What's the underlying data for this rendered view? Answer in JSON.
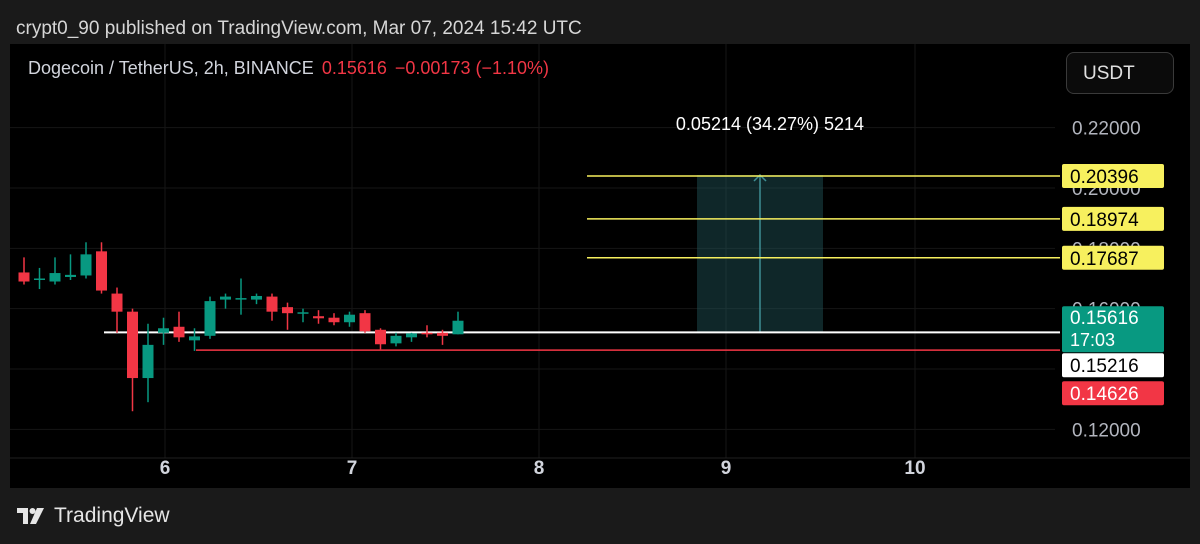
{
  "header": {
    "published": "crypt0_90 published on TradingView.com, Mar 07, 2024 15:42 UTC"
  },
  "legend": {
    "symbol": "Dogecoin / TetherUS, 2h, BINANCE",
    "price": "0.15616",
    "change": "−0.00173 (−1.10%)"
  },
  "currency_button": "USDT",
  "footer": {
    "brand": "TradingView"
  },
  "colors": {
    "up": "#089981",
    "down": "#f23645",
    "level": "#f7f05e",
    "measure": "#2e6f73",
    "white_line": "#ffffff",
    "red_line": "#f23645"
  },
  "chart_data": {
    "type": "candlestick",
    "symbol": "DOGEUSDT",
    "interval": "2h",
    "y_axis": {
      "ticks": [
        "0.22000",
        "0.20000",
        "0.18000",
        "0.16000",
        "0.12000"
      ],
      "tick_values": [
        0.22,
        0.2,
        0.18,
        0.16,
        0.12
      ],
      "range": [
        0.1105,
        0.2285
      ]
    },
    "x_axis": {
      "ticks": [
        "6",
        "7",
        "8",
        "9",
        "10"
      ]
    },
    "candles": [
      {
        "o": 0.172,
        "h": 0.177,
        "l": 0.168,
        "c": 0.169
      },
      {
        "o": 0.1697,
        "h": 0.1735,
        "l": 0.1665,
        "c": 0.17
      },
      {
        "o": 0.169,
        "h": 0.177,
        "l": 0.168,
        "c": 0.1718
      },
      {
        "o": 0.1705,
        "h": 0.178,
        "l": 0.1695,
        "c": 0.1712
      },
      {
        "o": 0.171,
        "h": 0.182,
        "l": 0.17,
        "c": 0.178
      },
      {
        "o": 0.179,
        "h": 0.182,
        "l": 0.165,
        "c": 0.166
      },
      {
        "o": 0.165,
        "h": 0.167,
        "l": 0.152,
        "c": 0.159
      },
      {
        "o": 0.159,
        "h": 0.16,
        "l": 0.126,
        "c": 0.137
      },
      {
        "o": 0.137,
        "h": 0.155,
        "l": 0.129,
        "c": 0.148
      },
      {
        "o": 0.152,
        "h": 0.157,
        "l": 0.148,
        "c": 0.1535
      },
      {
        "o": 0.154,
        "h": 0.159,
        "l": 0.149,
        "c": 0.1505
      },
      {
        "o": 0.1495,
        "h": 0.1535,
        "l": 0.146,
        "c": 0.1508
      },
      {
        "o": 0.151,
        "h": 0.164,
        "l": 0.15,
        "c": 0.1625
      },
      {
        "o": 0.163,
        "h": 0.165,
        "l": 0.16,
        "c": 0.164
      },
      {
        "o": 0.163,
        "h": 0.17,
        "l": 0.158,
        "c": 0.1635
      },
      {
        "o": 0.163,
        "h": 0.165,
        "l": 0.1615,
        "c": 0.1642
      },
      {
        "o": 0.164,
        "h": 0.165,
        "l": 0.156,
        "c": 0.159
      },
      {
        "o": 0.1605,
        "h": 0.162,
        "l": 0.153,
        "c": 0.1585
      },
      {
        "o": 0.1585,
        "h": 0.16,
        "l": 0.1555,
        "c": 0.1588
      },
      {
        "o": 0.1575,
        "h": 0.1595,
        "l": 0.155,
        "c": 0.1568
      },
      {
        "o": 0.157,
        "h": 0.1585,
        "l": 0.1545,
        "c": 0.1555
      },
      {
        "o": 0.1555,
        "h": 0.159,
        "l": 0.154,
        "c": 0.158
      },
      {
        "o": 0.1585,
        "h": 0.1595,
        "l": 0.152,
        "c": 0.1525
      },
      {
        "o": 0.153,
        "h": 0.1535,
        "l": 0.1465,
        "c": 0.1482
      },
      {
        "o": 0.1485,
        "h": 0.152,
        "l": 0.1475,
        "c": 0.151
      },
      {
        "o": 0.1505,
        "h": 0.152,
        "l": 0.149,
        "c": 0.1518
      },
      {
        "o": 0.152,
        "h": 0.1545,
        "l": 0.1505,
        "c": 0.1515
      },
      {
        "o": 0.152,
        "h": 0.153,
        "l": 0.148,
        "c": 0.151
      },
      {
        "o": 0.1515,
        "h": 0.159,
        "l": 0.1515,
        "c": 0.156
      }
    ],
    "horizontal_lines": [
      {
        "value": 0.20396,
        "label": "0.20396",
        "color": "#f7f05e"
      },
      {
        "value": 0.18974,
        "label": "0.18974",
        "color": "#f7f05e"
      },
      {
        "value": 0.17687,
        "label": "0.17687",
        "color": "#f7f05e"
      },
      {
        "value": 0.15216,
        "label": "0.15216",
        "color": "#ffffff"
      },
      {
        "value": 0.14626,
        "label": "0.14626",
        "color": "#f23645"
      }
    ],
    "current_price": {
      "value": 0.15616,
      "label": "0.15616",
      "countdown": "17:03"
    },
    "measure": {
      "from": 0.15216,
      "to": 0.2043,
      "label": "0.05214 (34.27%) 5214"
    }
  }
}
